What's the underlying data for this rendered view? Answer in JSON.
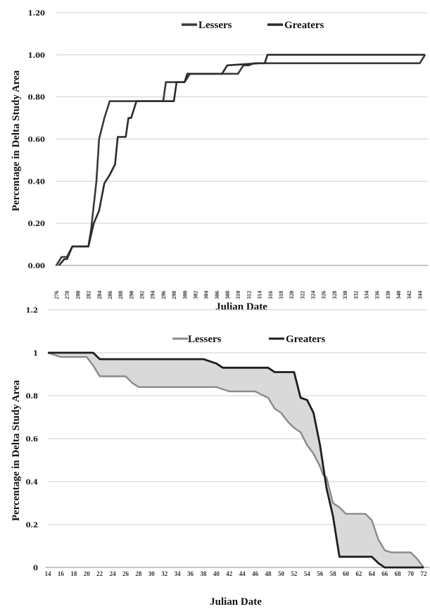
{
  "chart_data": [
    {
      "type": "line",
      "xlabel": "Julian Date",
      "ylabel": "Percentage in Delta Study Area",
      "ylim": [
        0,
        1.2
      ],
      "yticks": [
        "0.00",
        "0.20",
        "0.40",
        "0.60",
        "0.80",
        "1.00",
        "1.20"
      ],
      "xticks": [
        "276",
        "278",
        "280",
        "282",
        "284",
        "286",
        "288",
        "290",
        "292",
        "294",
        "296",
        "298",
        "300",
        "302",
        "304",
        "306",
        "308",
        "310",
        "312",
        "314",
        "316",
        "318",
        "320",
        "322",
        "324",
        "326",
        "328",
        "330",
        "332",
        "334",
        "336",
        "338",
        "340",
        "342",
        "344"
      ],
      "xlim": [
        276,
        345
      ],
      "grid": true,
      "legend": "top",
      "series": [
        {
          "name": "Lessers",
          "color": "#3a3a3a",
          "points": [
            [
              276,
              0
            ],
            [
              277,
              0.04
            ],
            [
              278,
              0.04
            ],
            [
              279,
              0.09
            ],
            [
              280,
              0.09
            ],
            [
              282,
              0.09
            ],
            [
              282.5,
              0.17
            ],
            [
              283.5,
              0.4
            ],
            [
              284,
              0.6
            ],
            [
              285,
              0.7
            ],
            [
              286,
              0.78
            ],
            [
              288,
              0.78
            ],
            [
              290,
              0.78
            ],
            [
              292,
              0.78
            ],
            [
              294,
              0.78
            ],
            [
              296,
              0.78
            ],
            [
              296.5,
              0.87
            ],
            [
              300,
              0.87
            ],
            [
              301,
              0.91
            ],
            [
              310,
              0.91
            ],
            [
              311,
              0.95
            ],
            [
              312,
              0.95
            ],
            [
              313,
              0.96
            ],
            [
              316,
              0.96
            ],
            [
              344,
              0.96
            ],
            [
              345,
              1.0
            ]
          ]
        },
        {
          "name": "Greaters",
          "color": "#2b2b2b",
          "points": [
            [
              276.5,
              0
            ],
            [
              277.5,
              0.03
            ],
            [
              278,
              0.03
            ],
            [
              279,
              0.09
            ],
            [
              280,
              0.09
            ],
            [
              282,
              0.09
            ],
            [
              283,
              0.2
            ],
            [
              284,
              0.26
            ],
            [
              285,
              0.39
            ],
            [
              286,
              0.43
            ],
            [
              287,
              0.48
            ],
            [
              287.5,
              0.61
            ],
            [
              289,
              0.61
            ],
            [
              289.5,
              0.7
            ],
            [
              290,
              0.7
            ],
            [
              291,
              0.78
            ],
            [
              294,
              0.78
            ],
            [
              298,
              0.78
            ],
            [
              298.5,
              0.87
            ],
            [
              300,
              0.87
            ],
            [
              300.5,
              0.91
            ],
            [
              307,
              0.91
            ],
            [
              308,
              0.95
            ],
            [
              314,
              0.96
            ],
            [
              315,
              0.96
            ],
            [
              315.5,
              1.0
            ],
            [
              345,
              1.0
            ]
          ]
        }
      ]
    },
    {
      "type": "area",
      "xlabel": "Julian Date",
      "ylabel": "Percentage in Delta Study Area",
      "ylim": [
        0,
        1.2
      ],
      "yticks": [
        "0",
        "0.2",
        "0.4",
        "0.6",
        "0.8",
        "1",
        "1.2"
      ],
      "xticks": [
        "14",
        "16",
        "18",
        "20",
        "22",
        "24",
        "26",
        "28",
        "30",
        "32",
        "34",
        "36",
        "38",
        "40",
        "42",
        "44",
        "46",
        "48",
        "50",
        "52",
        "54",
        "56",
        "58",
        "60",
        "62",
        "64",
        "66",
        "68",
        "70",
        "72"
      ],
      "xlim": [
        14,
        72
      ],
      "grid": true,
      "legend": "top",
      "shaded_difference": true,
      "fill_color": "#d9d9d9",
      "series": [
        {
          "name": "Lessers",
          "color": "#8a8a8a",
          "points": [
            [
              14,
              1.0
            ],
            [
              15,
              0.99
            ],
            [
              16,
              0.98
            ],
            [
              20,
              0.98
            ],
            [
              21,
              0.94
            ],
            [
              22,
              0.89
            ],
            [
              26,
              0.89
            ],
            [
              27,
              0.86
            ],
            [
              28,
              0.84
            ],
            [
              40,
              0.84
            ],
            [
              41,
              0.83
            ],
            [
              42,
              0.82
            ],
            [
              46,
              0.82
            ],
            [
              48,
              0.79
            ],
            [
              49,
              0.74
            ],
            [
              50,
              0.72
            ],
            [
              51,
              0.68
            ],
            [
              52,
              0.65
            ],
            [
              53,
              0.63
            ],
            [
              54,
              0.57
            ],
            [
              55,
              0.53
            ],
            [
              56,
              0.47
            ],
            [
              56.5,
              0.43
            ],
            [
              57,
              0.42
            ],
            [
              58,
              0.3
            ],
            [
              59,
              0.28
            ],
            [
              60,
              0.25
            ],
            [
              62,
              0.25
            ],
            [
              63,
              0.25
            ],
            [
              64,
              0.22
            ],
            [
              65,
              0.13
            ],
            [
              66,
              0.08
            ],
            [
              67,
              0.07
            ],
            [
              70,
              0.07
            ],
            [
              71,
              0.04
            ],
            [
              72,
              0.0
            ]
          ]
        },
        {
          "name": "Greaters",
          "color": "#1e1e1e",
          "points": [
            [
              14,
              1.0
            ],
            [
              20,
              1.0
            ],
            [
              21,
              1.0
            ],
            [
              22,
              0.97
            ],
            [
              30,
              0.97
            ],
            [
              38,
              0.97
            ],
            [
              40,
              0.95
            ],
            [
              41,
              0.93
            ],
            [
              46,
              0.93
            ],
            [
              48,
              0.93
            ],
            [
              49,
              0.91
            ],
            [
              52,
              0.91
            ],
            [
              53,
              0.79
            ],
            [
              54,
              0.78
            ],
            [
              55,
              0.72
            ],
            [
              56,
              0.57
            ],
            [
              57,
              0.37
            ],
            [
              58,
              0.24
            ],
            [
              59,
              0.05
            ],
            [
              64,
              0.05
            ],
            [
              65,
              0.02
            ],
            [
              66,
              0.0
            ],
            [
              72,
              0.0
            ]
          ]
        }
      ]
    }
  ]
}
